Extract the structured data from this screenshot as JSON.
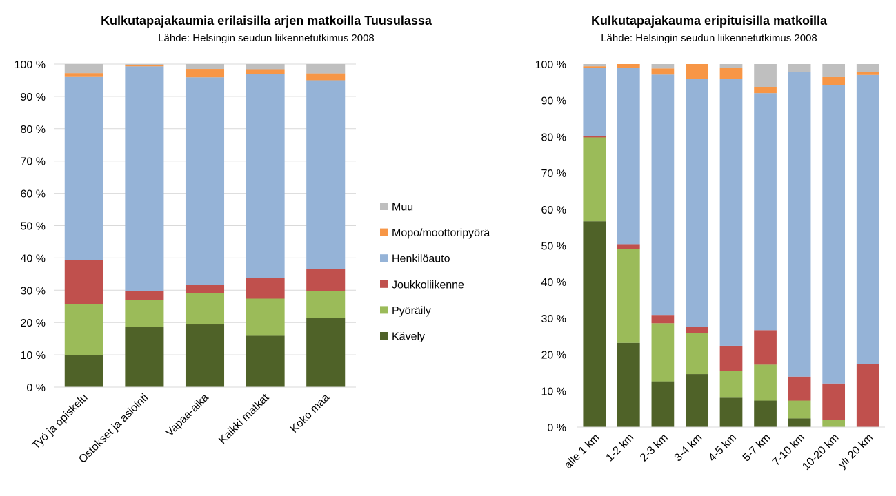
{
  "colors": {
    "Kävely": "#4f6228",
    "Pyöräily": "#9bbb59",
    "Joukkoliikenne": "#c0504d",
    "Henkilöauto": "#95b3d7",
    "Mopo/moottoripyörä": "#f79646",
    "Muu": "#bfbfbf",
    "gridline": "#d9d9d9"
  },
  "legend": {
    "items": [
      "Muu",
      "Mopo/moottoripyörä",
      "Henkilöauto",
      "Joukkoliikenne",
      "Pyöräily",
      "Kävely"
    ]
  },
  "chart_data": [
    {
      "type": "bar",
      "stacked": true,
      "title": "Kulkutapajakaumia erilaisilla arjen matkoilla Tuusulassa",
      "subtitle": "Lähde: Helsingin seudun liikennetutkimus 2008",
      "xlabel": "",
      "ylabel": "",
      "ylim": [
        0,
        100
      ],
      "yticks": [
        "0 %",
        "10 %",
        "20 %",
        "30 %",
        "40 %",
        "50 %",
        "60 %",
        "70 %",
        "80 %",
        "90 %",
        "100 %"
      ],
      "grid": true,
      "categories": [
        "Työ ja opiskelu",
        "Ostokset ja asiointi",
        "Vapaa-aika",
        "Kaikki matkat",
        "Koko maa"
      ],
      "series": [
        {
          "name": "Kävely",
          "values": [
            10,
            18.6,
            19.4,
            15.9,
            21.4
          ]
        },
        {
          "name": "Pyöräily",
          "values": [
            15.7,
            8.3,
            9.6,
            11.5,
            8.3
          ]
        },
        {
          "name": "Joukkoliikenne",
          "values": [
            13.6,
            2.8,
            2.6,
            6.4,
            6.8
          ]
        },
        {
          "name": "Henkilöauto",
          "values": [
            56.7,
            69.6,
            64.3,
            63.0,
            58.5
          ]
        },
        {
          "name": "Mopo/moottoripyörä",
          "values": [
            1.2,
            0.5,
            2.6,
            1.6,
            2.1
          ]
        },
        {
          "name": "Muu",
          "values": [
            2.8,
            0.2,
            1.5,
            1.6,
            2.9
          ]
        }
      ]
    },
    {
      "type": "bar",
      "stacked": true,
      "title": "Kulkutapajakauma eripituisilla matkoilla",
      "subtitle": "Lähde: Helsingin seudun liikennetutkimus 2008",
      "xlabel": "",
      "ylabel": "",
      "ylim": [
        0,
        100
      ],
      "yticks": [
        "0 %",
        "10 %",
        "20 %",
        "30 %",
        "40 %",
        "50 %",
        "60 %",
        "70 %",
        "80 %",
        "90 %",
        "100 %"
      ],
      "grid": false,
      "categories": [
        "alle 1 km",
        "1-2 km",
        "2-3 km",
        "3-4 km",
        "4-5 km",
        "5-7 km",
        "7-10 km",
        "10-20 km",
        "yli 20 km"
      ],
      "series": [
        {
          "name": "Kävely",
          "values": [
            56.7,
            23.2,
            12.6,
            14.6,
            8.1,
            7.3,
            2.4,
            0,
            0
          ]
        },
        {
          "name": "Pyöräily",
          "values": [
            23.1,
            25.9,
            16.0,
            11.3,
            7.4,
            9.9,
            4.9,
            2.0,
            0
          ]
        },
        {
          "name": "Joukkoliikenne",
          "values": [
            0.4,
            1.3,
            2.3,
            1.7,
            6.9,
            9.5,
            6.6,
            10.0,
            17.3
          ]
        },
        {
          "name": "Henkilöauto",
          "values": [
            18.8,
            48.5,
            66.2,
            68.4,
            73.5,
            65.3,
            83.9,
            82.3,
            79.7
          ]
        },
        {
          "name": "Mopo/moottoripyörä",
          "values": [
            0.4,
            1.1,
            1.7,
            4.0,
            3.1,
            1.7,
            0,
            2.1,
            0.9
          ]
        },
        {
          "name": "Muu",
          "values": [
            0.6,
            0,
            1.2,
            0,
            1.0,
            6.3,
            2.2,
            3.6,
            2.1
          ]
        }
      ]
    }
  ]
}
